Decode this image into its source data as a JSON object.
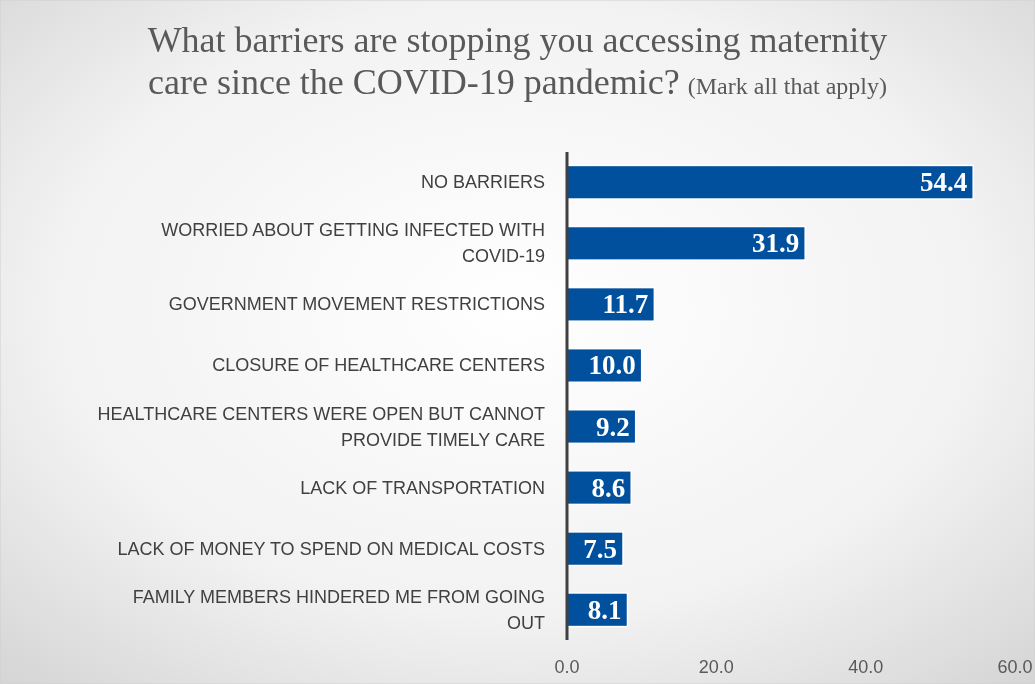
{
  "chart_data": {
    "type": "bar",
    "orientation": "horizontal",
    "title": "What barriers are stopping you accessing maternity care since the COVID-19 pandemic?",
    "subtitle": "(Mark all that apply)",
    "categories": [
      "NO BARRIERS",
      "WORRIED ABOUT GETTING INFECTED WITH COVID-19",
      "GOVERNMENT MOVEMENT RESTRICTIONS",
      "CLOSURE OF HEALTHCARE CENTERS",
      "HEALTHCARE CENTERS WERE OPEN BUT CANNOT PROVIDE TIMELY CARE",
      "LACK OF TRANSPORTATION",
      "LACK OF MONEY TO SPEND ON MEDICAL COSTS",
      "FAMILY MEMBERS HINDERED ME FROM GOING OUT"
    ],
    "values": [
      54.4,
      31.9,
      11.7,
      10.0,
      9.2,
      8.6,
      7.5,
      8.1
    ],
    "value_labels": [
      "54.4",
      "31.9",
      "11.7",
      "10.0",
      "9.2",
      "8.6",
      "7.5",
      "8.1"
    ],
    "color": "#00509d",
    "xlim": [
      0,
      60
    ],
    "xticks": [
      {
        "value": 0,
        "label": "0.0"
      },
      {
        "value": 20,
        "label": "20.0"
      },
      {
        "value": 40,
        "label": "40.0"
      },
      {
        "value": 60,
        "label": "60.0"
      }
    ],
    "grid": false
  }
}
